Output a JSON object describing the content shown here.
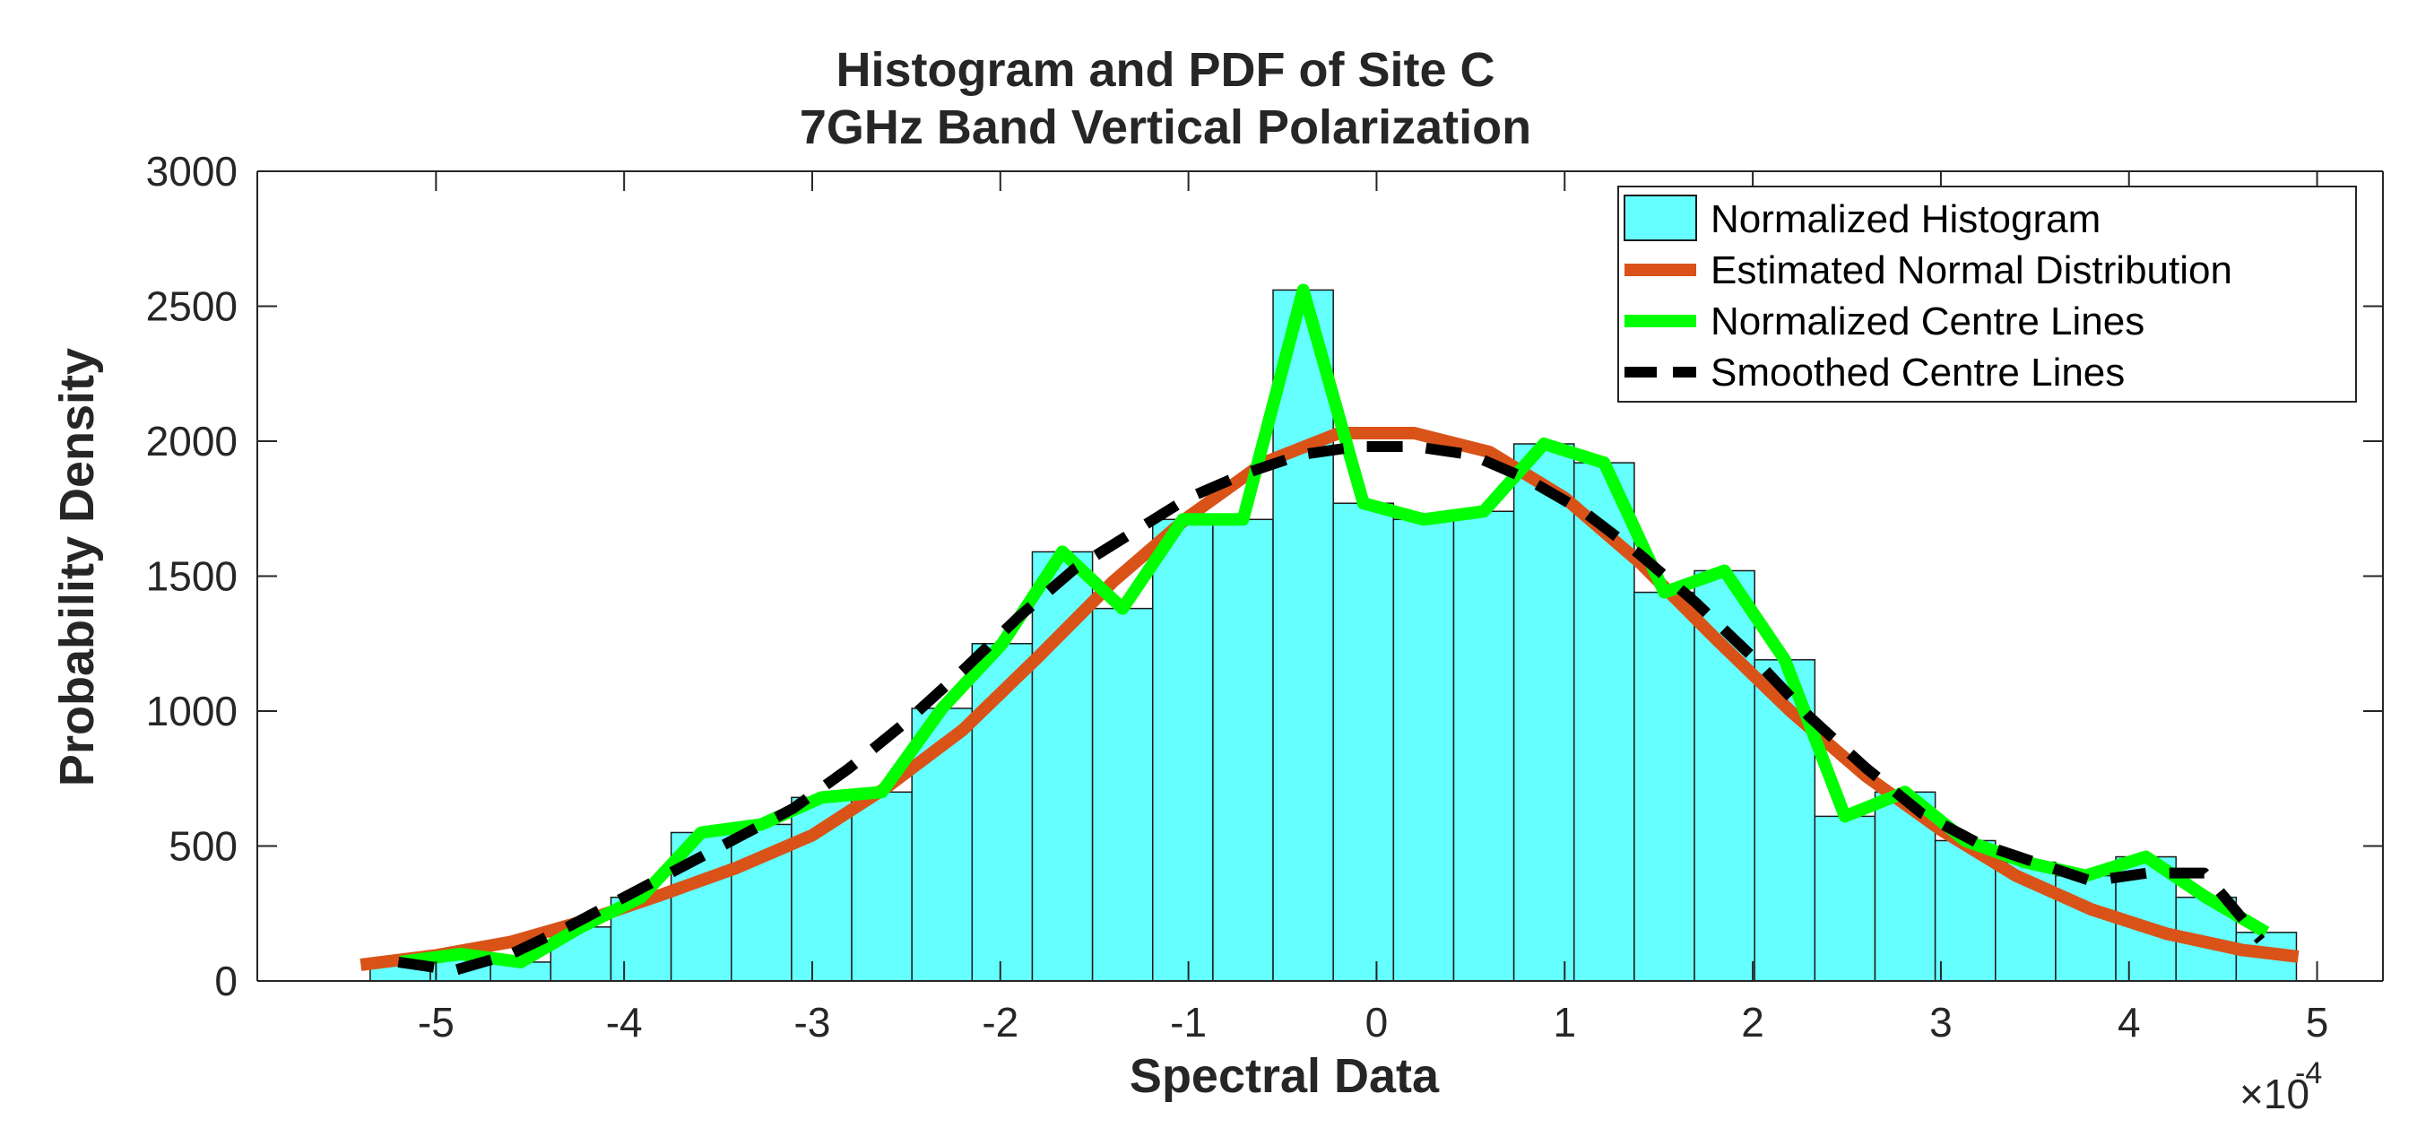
{
  "chart_data": {
    "type": "bar",
    "title": [
      "Histogram and PDF of Site C",
      "7GHz Band Vertical Polarization"
    ],
    "xlabel": "Spectral Data",
    "ylabel": "Probability Density",
    "x_exponent_label": "×10",
    "x_exponent_power": "-4",
    "xlim": [
      -5.95,
      5.35
    ],
    "ylim": [
      0,
      3000
    ],
    "xticks": [
      -5,
      -4,
      -3,
      -2,
      -1,
      0,
      1,
      2,
      3,
      4,
      5
    ],
    "xtick_labels": [
      "-5",
      "-4",
      "-3",
      "-2",
      "-1",
      "0",
      "1",
      "2",
      "3",
      "4",
      "5"
    ],
    "yticks": [
      0,
      500,
      1000,
      1500,
      2000,
      2500,
      3000
    ],
    "ytick_labels": [
      "0",
      "500",
      "1000",
      "1500",
      "2000",
      "2500",
      "3000"
    ],
    "grid": false,
    "legend_position": "top-right",
    "colors": {
      "histogram_fill": "#66ffff",
      "histogram_edge": "#1a1a1a",
      "normal": "#d95319",
      "centre": "#00ff00",
      "smoothed": "#000000",
      "axes": "#262626"
    },
    "histogram": {
      "name": "Normalized Histogram",
      "bin_edges": [
        -5.35,
        -5.03,
        -4.71,
        -4.39,
        -4.07,
        -3.75,
        -3.43,
        -3.11,
        -2.79,
        -2.47,
        -2.15,
        -1.83,
        -1.51,
        -1.19,
        -0.87,
        -0.55,
        -0.23,
        0.09,
        0.41,
        0.73,
        1.05,
        1.37,
        1.69,
        2.01,
        2.33,
        2.65,
        2.97,
        3.29,
        3.61,
        3.93,
        4.25,
        4.57,
        4.89
      ],
      "values": [
        70,
        100,
        70,
        200,
        310,
        550,
        580,
        680,
        700,
        1010,
        1250,
        1590,
        1380,
        1710,
        1710,
        2560,
        1770,
        1710,
        1740,
        1990,
        1920,
        1440,
        1520,
        1190,
        610,
        700,
        520,
        440,
        390,
        460,
        310,
        180
      ]
    },
    "series": [
      {
        "name": "Estimated Normal Distribution",
        "x": [
          -5.4,
          -5.0,
          -4.6,
          -4.2,
          -3.8,
          -3.4,
          -3.0,
          -2.6,
          -2.2,
          -1.8,
          -1.4,
          -1.0,
          -0.6,
          -0.2,
          0.2,
          0.6,
          1.0,
          1.4,
          1.8,
          2.2,
          2.6,
          3.0,
          3.4,
          3.8,
          4.2,
          4.6,
          4.9
        ],
        "y": [
          60,
          95,
          145,
          225,
          320,
          420,
          540,
          720,
          930,
          1200,
          1480,
          1720,
          1920,
          2030,
          2030,
          1960,
          1790,
          1550,
          1270,
          1000,
          760,
          560,
          390,
          265,
          175,
          115,
          90
        ]
      },
      {
        "name": "Normalized Centre Lines",
        "x": [
          -5.19,
          -4.87,
          -4.55,
          -4.23,
          -3.91,
          -3.59,
          -3.27,
          -2.95,
          -2.63,
          -2.31,
          -1.99,
          -1.67,
          -1.35,
          -1.03,
          -0.71,
          -0.39,
          -0.07,
          0.25,
          0.57,
          0.89,
          1.21,
          1.53,
          1.85,
          2.17,
          2.49,
          2.81,
          3.13,
          3.45,
          3.77,
          4.09,
          4.41,
          4.73
        ],
        "y": [
          70,
          100,
          70,
          200,
          310,
          550,
          580,
          680,
          700,
          1010,
          1250,
          1590,
          1380,
          1710,
          1710,
          2560,
          1770,
          1710,
          1740,
          1990,
          1920,
          1440,
          1520,
          1190,
          610,
          700,
          520,
          440,
          390,
          460,
          310,
          180
        ]
      },
      {
        "name": "Smoothed Centre Lines",
        "x": [
          -5.2,
          -4.9,
          -4.6,
          -4.3,
          -4.0,
          -3.7,
          -3.4,
          -3.1,
          -2.8,
          -2.5,
          -2.2,
          -1.9,
          -1.6,
          -1.3,
          -1.0,
          -0.7,
          -0.4,
          -0.1,
          0.2,
          0.5,
          0.8,
          1.1,
          1.4,
          1.7,
          2.0,
          2.3,
          2.6,
          2.9,
          3.2,
          3.5,
          3.8,
          4.1,
          4.4,
          4.7
        ],
        "y": [
          70,
          40,
          100,
          200,
          310,
          420,
          530,
          640,
          790,
          960,
          1150,
          1350,
          1530,
          1660,
          1790,
          1880,
          1950,
          1980,
          1980,
          1950,
          1860,
          1740,
          1580,
          1400,
          1200,
          980,
          790,
          620,
          510,
          440,
          370,
          400,
          400,
          150
        ]
      }
    ]
  }
}
